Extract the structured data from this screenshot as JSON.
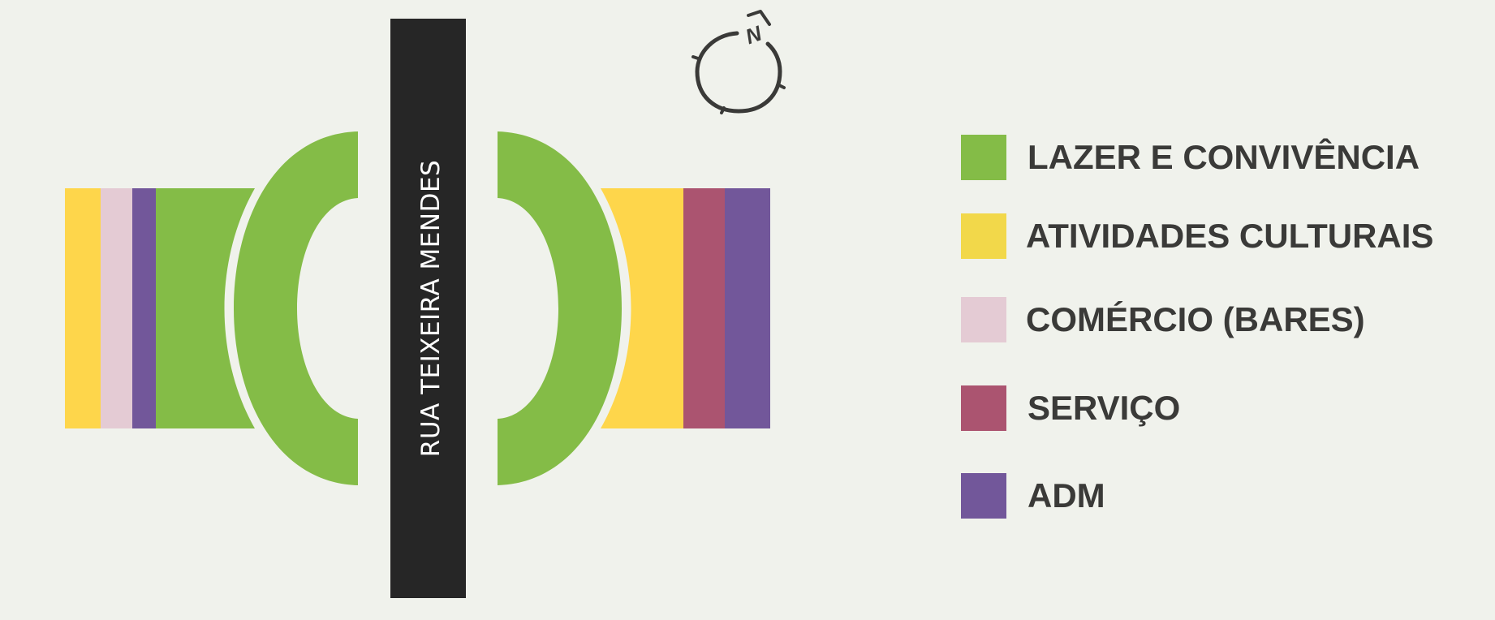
{
  "street": {
    "label": "RUA TEIXEIRA MENDES"
  },
  "compass": {
    "label": "N",
    "icon": "north-arrow-icon"
  },
  "zones": {
    "west_strips": [
      "cultural",
      "comercio",
      "adm",
      "lazer"
    ],
    "east_strips": [
      "cultural",
      "servico",
      "adm"
    ]
  },
  "legend": {
    "items": [
      {
        "key": "lazer",
        "label": "LAZER E CONVIVÊNCIA",
        "color": "#84bc47"
      },
      {
        "key": "cultural",
        "label": "ATIVIDADES CULTURAIS",
        "color": "#f2d84a"
      },
      {
        "key": "comercio",
        "label": "COMÉRCIO (BARES)",
        "color": "#e4cbd4"
      },
      {
        "key": "servico",
        "label": "SERVIÇO",
        "color": "#ab5470"
      },
      {
        "key": "adm",
        "label": "ADM",
        "color": "#72579a"
      }
    ]
  },
  "colors": {
    "background": "#f0f2ec",
    "street": "#262626",
    "street_text": "#ffffff",
    "lazer": "#84bc47",
    "cultural_block": "#fed64b",
    "comercio": "#e4cbd4",
    "servico": "#ab5470",
    "adm": "#72579a",
    "ink": "#3a3a38"
  }
}
